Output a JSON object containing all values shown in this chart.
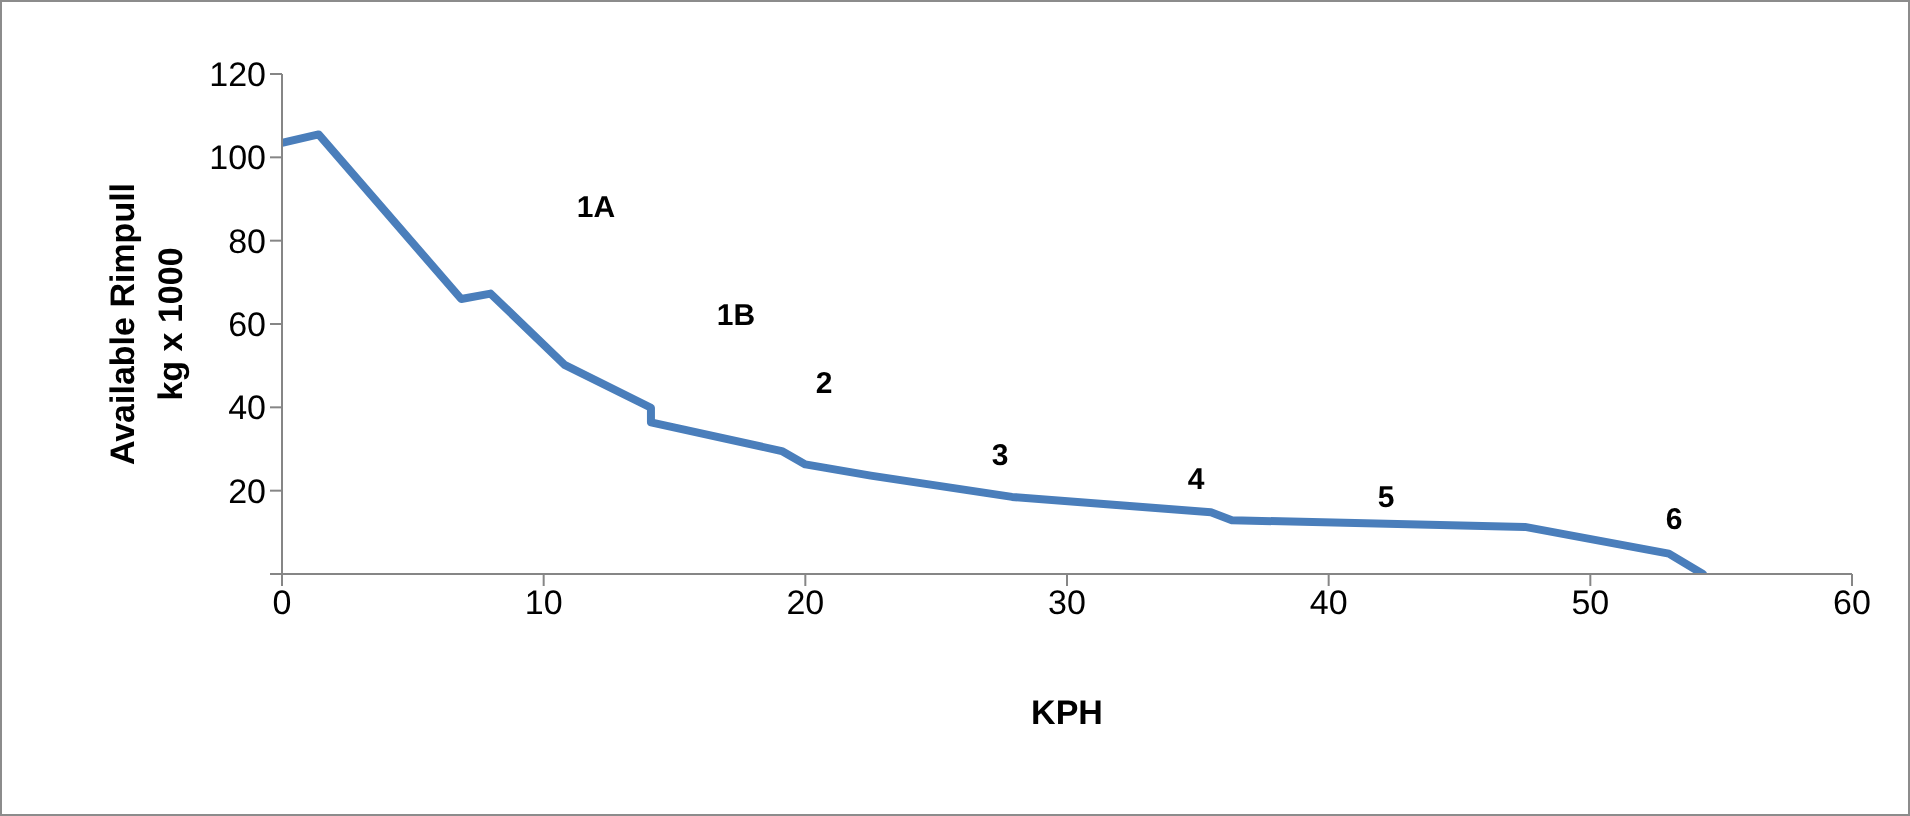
{
  "chart_data": {
    "type": "line",
    "xlabel": "KPH",
    "ylabel": "Available Rimpull\nkg x 1000",
    "x": [
      0,
      1.4,
      6.85,
      7.97,
      10.8,
      14.1,
      14.1,
      19.1,
      20,
      22.5,
      27.9,
      35.5,
      36.3,
      47.5,
      53,
      54.3
    ],
    "series": [
      {
        "color": "#4a7ebb",
        "values": [
          103.5,
          105.5,
          66,
          67.3,
          50.2,
          39.9,
          36.4,
          29.5,
          26.3,
          23.6,
          18.5,
          14.8,
          12.9,
          11.3,
          4.9,
          0
        ]
      }
    ],
    "xlim": [
      0,
      60
    ],
    "xticks": [
      0,
      10,
      20,
      30,
      40,
      50,
      60
    ],
    "ylim": [
      0,
      120
    ],
    "yticks": [
      {
        "value": 0,
        "label": null
      },
      20,
      40,
      60,
      80,
      100,
      120
    ],
    "grid": false,
    "legend": false,
    "marker": "none",
    "line_style": "solid",
    "annotations": [
      "1A",
      "1B",
      "2",
      "3",
      "4",
      "5",
      "6"
    ]
  }
}
